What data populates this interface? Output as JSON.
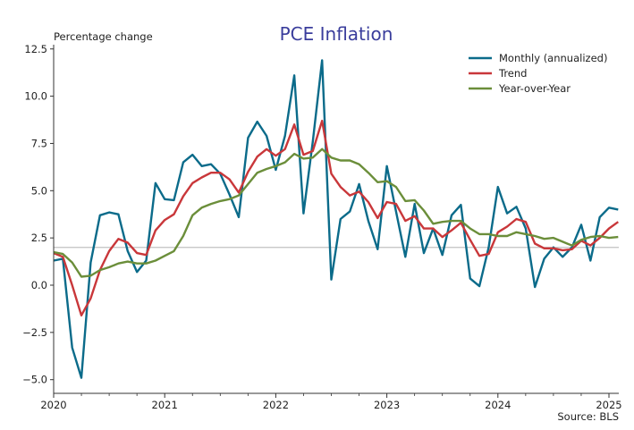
{
  "chart_data": {
    "type": "line",
    "title": "PCE Inflation",
    "ylabel": "Percentage change",
    "xlabel": "",
    "source": "Source: BLS",
    "ylim": [
      -5.8,
      12.7
    ],
    "xlim": [
      2020.0,
      2025.12
    ],
    "yticks": [
      12.5,
      10.0,
      7.5,
      5.0,
      2.5,
      0.0,
      -2.5,
      -5.0
    ],
    "ytick_labels": [
      "12.5",
      "10.0",
      "7.5",
      "5.0",
      "2.5",
      "0.0",
      "−2.5",
      "−5.0"
    ],
    "xticks": [
      2020,
      2021,
      2022,
      2023,
      2024,
      2025
    ],
    "xtick_labels": [
      "2020",
      "2021",
      "2022",
      "2023",
      "2024",
      "2025"
    ],
    "reference_line": 2.0,
    "legend_position": "top-right",
    "colors": {
      "title": "#3a3d9c",
      "reference": "#c0c0c0",
      "axis": "#333333"
    },
    "start": "2020-01",
    "frequency": "monthly",
    "series": [
      {
        "name": "Monthly (annualized)",
        "color": "#0b6b8a",
        "values": [
          1.3,
          1.4,
          -3.3,
          -4.9,
          1.2,
          3.7,
          3.85,
          3.75,
          1.8,
          0.7,
          1.3,
          5.4,
          4.55,
          4.5,
          6.5,
          6.9,
          6.3,
          6.4,
          5.9,
          4.8,
          3.6,
          7.8,
          8.65,
          7.9,
          6.1,
          7.9,
          11.1,
          3.8,
          7.6,
          11.9,
          0.3,
          3.5,
          3.9,
          5.35,
          3.4,
          1.9,
          6.3,
          3.9,
          1.5,
          4.3,
          1.7,
          3.0,
          1.6,
          3.7,
          4.25,
          0.35,
          -0.05,
          2.0,
          5.2,
          3.8,
          4.15,
          3.0,
          -0.1,
          1.4,
          2.0,
          1.5,
          2.0,
          3.2,
          1.3,
          3.6,
          4.1,
          4.0
        ]
      },
      {
        "name": "Trend",
        "color": "#c9373a",
        "values": [
          1.7,
          1.5,
          0.0,
          -1.6,
          -0.7,
          0.8,
          1.8,
          2.45,
          2.25,
          1.7,
          1.6,
          2.9,
          3.45,
          3.75,
          4.7,
          5.4,
          5.7,
          5.95,
          5.95,
          5.6,
          4.9,
          6.0,
          6.8,
          7.2,
          6.85,
          7.2,
          8.5,
          6.9,
          7.1,
          8.7,
          5.9,
          5.2,
          4.75,
          4.95,
          4.4,
          3.55,
          4.4,
          4.3,
          3.4,
          3.65,
          3.0,
          3.0,
          2.55,
          2.9,
          3.3,
          2.4,
          1.55,
          1.65,
          2.8,
          3.1,
          3.5,
          3.35,
          2.2,
          1.95,
          1.95,
          1.85,
          1.9,
          2.35,
          2.1,
          2.5,
          3.0,
          3.35
        ]
      },
      {
        "name": "Year-over-Year",
        "color": "#6b8e3a",
        "values": [
          1.75,
          1.65,
          1.2,
          0.45,
          0.5,
          0.8,
          0.95,
          1.15,
          1.25,
          1.15,
          1.15,
          1.3,
          1.55,
          1.8,
          2.6,
          3.7,
          4.1,
          4.3,
          4.45,
          4.55,
          4.75,
          5.35,
          5.95,
          6.15,
          6.3,
          6.5,
          6.95,
          6.7,
          6.75,
          7.2,
          6.75,
          6.6,
          6.6,
          6.4,
          5.95,
          5.45,
          5.5,
          5.2,
          4.45,
          4.5,
          3.95,
          3.25,
          3.35,
          3.4,
          3.4,
          3.0,
          2.7,
          2.7,
          2.6,
          2.6,
          2.8,
          2.7,
          2.6,
          2.45,
          2.5,
          2.3,
          2.1,
          2.4,
          2.55,
          2.6,
          2.5,
          2.55
        ]
      }
    ]
  }
}
